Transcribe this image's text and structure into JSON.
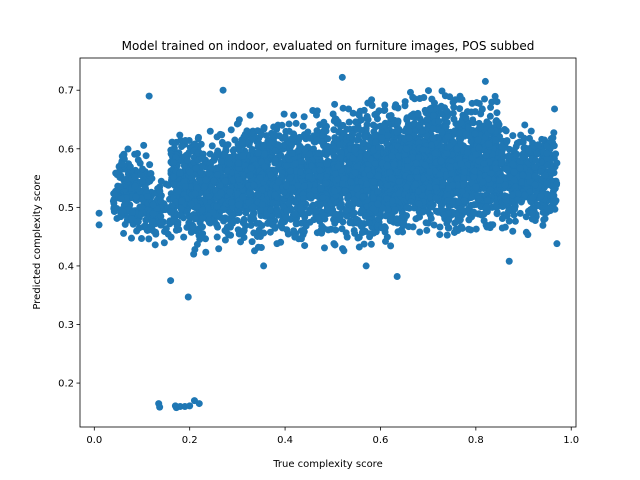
{
  "chart_data": {
    "type": "scatter",
    "title": "Model trained on indoor, evaluated on furniture images, POS subbed",
    "xlabel": "True complexity score",
    "ylabel": "Predicted complexity score",
    "xlim": [
      -0.03,
      1.01
    ],
    "ylim": [
      0.125,
      0.755
    ],
    "xticks": [
      0.0,
      0.2,
      0.4,
      0.6,
      0.8,
      1.0
    ],
    "xtick_labels": [
      "0.0",
      "0.2",
      "0.4",
      "0.6",
      "0.8",
      "1.0"
    ],
    "yticks": [
      0.2,
      0.3,
      0.4,
      0.5,
      0.6,
      0.7
    ],
    "ytick_labels": [
      "0.2",
      "0.3",
      "0.4",
      "0.5",
      "0.6",
      "0.7"
    ],
    "grid": false,
    "marker_color": "#1f77b4",
    "outlier_points": [
      {
        "x": 0.135,
        "y": 0.165
      },
      {
        "x": 0.137,
        "y": 0.159
      },
      {
        "x": 0.17,
        "y": 0.161
      },
      {
        "x": 0.172,
        "y": 0.158
      },
      {
        "x": 0.18,
        "y": 0.16
      },
      {
        "x": 0.19,
        "y": 0.16
      },
      {
        "x": 0.2,
        "y": 0.161
      },
      {
        "x": 0.21,
        "y": 0.17
      },
      {
        "x": 0.22,
        "y": 0.165
      },
      {
        "x": 0.16,
        "y": 0.375
      },
      {
        "x": 0.197,
        "y": 0.347
      },
      {
        "x": 0.635,
        "y": 0.382
      },
      {
        "x": 0.57,
        "y": 0.4
      },
      {
        "x": 0.355,
        "y": 0.4
      },
      {
        "x": 0.52,
        "y": 0.722
      },
      {
        "x": 0.82,
        "y": 0.715
      },
      {
        "x": 0.27,
        "y": 0.7
      },
      {
        "x": 0.115,
        "y": 0.69
      },
      {
        "x": 0.965,
        "y": 0.668
      },
      {
        "x": 0.97,
        "y": 0.438
      },
      {
        "x": 0.87,
        "y": 0.408
      },
      {
        "x": 0.01,
        "y": 0.49
      },
      {
        "x": 0.01,
        "y": 0.47
      }
    ],
    "clusters": [
      {
        "x_range": [
          0.04,
          0.12
        ],
        "y_range": [
          0.42,
          0.62
        ],
        "count": 220
      },
      {
        "x_range": [
          0.12,
          0.16
        ],
        "y_range": [
          0.42,
          0.58
        ],
        "count": 60
      },
      {
        "x_range": [
          0.16,
          0.3
        ],
        "y_range": [
          0.41,
          0.66
        ],
        "count": 600
      },
      {
        "x_range": [
          0.3,
          0.5
        ],
        "y_range": [
          0.41,
          0.68
        ],
        "count": 1000
      },
      {
        "x_range": [
          0.5,
          0.65
        ],
        "y_range": [
          0.41,
          0.7
        ],
        "count": 1000
      },
      {
        "x_range": [
          0.65,
          0.85
        ],
        "y_range": [
          0.43,
          0.715
        ],
        "count": 1400
      },
      {
        "x_range": [
          0.85,
          0.97
        ],
        "y_range": [
          0.44,
          0.66
        ],
        "count": 450
      }
    ]
  }
}
